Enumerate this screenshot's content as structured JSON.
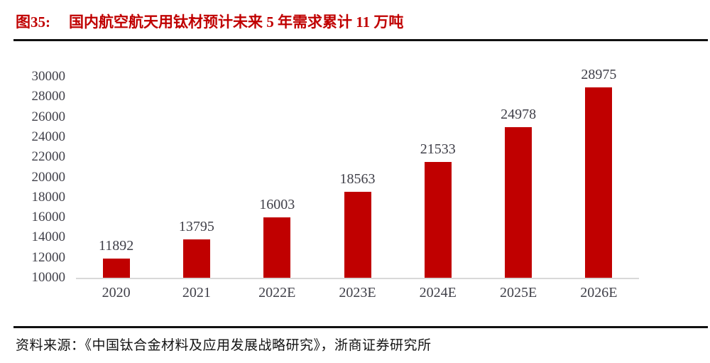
{
  "figure": {
    "label": "图35:",
    "title": "国内航空航天用钛材预计未来 5 年需求累计 11 万吨",
    "source": "资料来源：《中国钛合金材料及应用发展战略研究》，浙商证券研究所"
  },
  "chart_data": {
    "type": "bar",
    "title": "国内航空航天用钛材预计未来 5 年需求累计 11 万吨",
    "categories": [
      "2020",
      "2021",
      "2022E",
      "2023E",
      "2024E",
      "2025E",
      "2026E"
    ],
    "values": [
      11892,
      13795,
      16003,
      18563,
      21533,
      24978,
      28975
    ],
    "xlabel": "",
    "ylabel": "",
    "ylim": [
      10000,
      30000
    ],
    "ytick_step": 2000,
    "grid": false,
    "legend": "none",
    "bar_color": "#C00000",
    "label_color": "#404049",
    "axis_line_color": "#D9D9D9"
  },
  "colors": {
    "title_red": "#C00000",
    "rule_black": "#111111"
  }
}
